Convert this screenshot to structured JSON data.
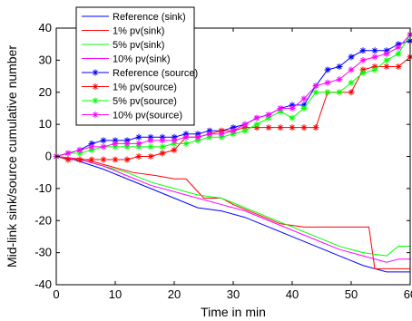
{
  "chart_data": {
    "type": "line",
    "title": "",
    "xlabel": "Time in min",
    "ylabel": "Mid-link sink/source cumulative number",
    "xlim": [
      0,
      60
    ],
    "ylim": [
      -40,
      40
    ],
    "xticks": [
      "0",
      "10",
      "20",
      "30",
      "40",
      "50",
      "60"
    ],
    "yticks": [
      "-40",
      "-30",
      "-20",
      "-10",
      "0",
      "10",
      "20",
      "30",
      "40"
    ],
    "grid": false,
    "legend_position": "top-left",
    "series": [
      {
        "name": "Reference (sink)",
        "color": "#0000ff",
        "marker": "none",
        "x": [
          0,
          3,
          8,
          12,
          16,
          20,
          24,
          28,
          32,
          36,
          40,
          44,
          48,
          52,
          56,
          60
        ],
        "y": [
          0,
          -1,
          -4,
          -7,
          -10,
          -13,
          -16,
          -17,
          -19,
          -22,
          -25,
          -28,
          -31,
          -34,
          -36,
          -36
        ]
      },
      {
        "name": "1% pv(sink)",
        "color": "#ff0000",
        "marker": "none",
        "x": [
          0,
          5,
          9,
          13,
          17,
          20,
          22,
          25,
          28,
          30,
          34,
          38,
          42,
          46,
          50,
          53,
          54,
          56,
          58,
          60
        ],
        "y": [
          0,
          -1,
          -3,
          -5,
          -6,
          -7,
          -7,
          -13,
          -13,
          -15,
          -18,
          -21,
          -22,
          -22,
          -22,
          -22,
          -35,
          -35,
          -35,
          -35
        ]
      },
      {
        "name": "5% pv(sink)",
        "color": "#00ff00",
        "marker": "none",
        "x": [
          0,
          4,
          8,
          12,
          16,
          20,
          24,
          28,
          32,
          36,
          40,
          44,
          48,
          52,
          56,
          58,
          60
        ],
        "y": [
          0,
          -1,
          -3,
          -5,
          -8,
          -10,
          -12,
          -13,
          -16,
          -19,
          -22,
          -25,
          -28,
          -30,
          -31,
          -28,
          -28
        ]
      },
      {
        "name": "10% pv(sink)",
        "color": "#ff00ff",
        "marker": "none",
        "x": [
          0,
          4,
          8,
          12,
          16,
          20,
          24,
          28,
          32,
          36,
          40,
          44,
          48,
          52,
          56,
          58,
          60
        ],
        "y": [
          0,
          -1,
          -3,
          -6,
          -9,
          -11,
          -13,
          -15,
          -17,
          -20,
          -23,
          -26,
          -29,
          -31,
          -33,
          -32,
          -32
        ]
      },
      {
        "name": "Reference (source)",
        "color": "#0000ff",
        "marker": "star",
        "x": [
          0,
          2,
          4,
          6,
          8,
          10,
          12,
          14,
          16,
          18,
          20,
          22,
          24,
          26,
          28,
          30,
          32,
          34,
          36,
          38,
          40,
          42,
          44,
          46,
          48,
          50,
          52,
          54,
          56,
          58,
          60
        ],
        "y": [
          0,
          1,
          2,
          4,
          5,
          5,
          5,
          6,
          6,
          6,
          6,
          7,
          7,
          8,
          8,
          9,
          10,
          12,
          13,
          15,
          16,
          16,
          22,
          27,
          28,
          31,
          33,
          33,
          33,
          35,
          36
        ]
      },
      {
        "name": "1% pv(source)",
        "color": "#ff0000",
        "marker": "star",
        "x": [
          0,
          2,
          4,
          6,
          8,
          10,
          12,
          14,
          16,
          18,
          20,
          22,
          24,
          26,
          28,
          30,
          32,
          34,
          36,
          38,
          40,
          42,
          44,
          46,
          48,
          50,
          52,
          54,
          56,
          58,
          60
        ],
        "y": [
          0,
          -1,
          -1,
          -1,
          -1,
          -1,
          -1,
          0,
          0,
          1,
          2,
          6,
          6,
          7,
          8,
          8,
          9,
          9,
          9,
          9,
          9,
          9,
          9,
          20,
          20,
          20,
          27,
          28,
          28,
          28,
          31
        ]
      },
      {
        "name": "5% pv(source)",
        "color": "#00ff00",
        "marker": "star",
        "x": [
          0,
          2,
          4,
          6,
          8,
          10,
          12,
          14,
          16,
          18,
          20,
          22,
          24,
          26,
          28,
          30,
          32,
          34,
          36,
          38,
          40,
          42,
          44,
          46,
          48,
          50,
          52,
          54,
          56,
          58,
          60
        ],
        "y": [
          0,
          1,
          1,
          2,
          3,
          3,
          3,
          3,
          3,
          3,
          4,
          4,
          5,
          6,
          6,
          7,
          8,
          10,
          12,
          14,
          12,
          15,
          20,
          20,
          20,
          23,
          26,
          27,
          30,
          32,
          38
        ]
      },
      {
        "name": "10% pv(source)",
        "color": "#ff00ff",
        "marker": "star",
        "x": [
          0,
          2,
          4,
          6,
          8,
          10,
          12,
          14,
          16,
          18,
          20,
          22,
          24,
          26,
          28,
          30,
          32,
          34,
          36,
          38,
          40,
          42,
          44,
          46,
          48,
          50,
          52,
          54,
          56,
          58,
          60
        ],
        "y": [
          0,
          1,
          2,
          3,
          3,
          4,
          4,
          4,
          5,
          5,
          5,
          6,
          6,
          7,
          7,
          8,
          10,
          12,
          13,
          15,
          15,
          18,
          22,
          23,
          24,
          27,
          30,
          31,
          32,
          34,
          38
        ]
      }
    ]
  }
}
